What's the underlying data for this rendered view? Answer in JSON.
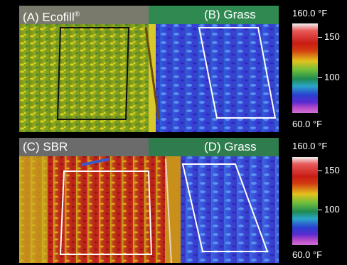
{
  "top": {
    "left_label": "(A) Ecofill",
    "left_label_mark": "®",
    "right_label": "(B) Grass",
    "scale_max": "160.0 °F",
    "scale_min": "60.0 °F",
    "tick_high": "150",
    "tick_mid": "100"
  },
  "bottom": {
    "left_label": "(C) SBR",
    "right_label": "(D) Grass",
    "scale_max": "160.0 °F",
    "scale_min": "60.0 °F",
    "tick_high": "150",
    "tick_mid": "100"
  },
  "colors": {
    "left_bar": "#7a7a6c",
    "right_bar": "#2f8a52",
    "bottom_left_bar": "#6b6b6b",
    "bottom_right_bar": "#2f7d4e"
  }
}
